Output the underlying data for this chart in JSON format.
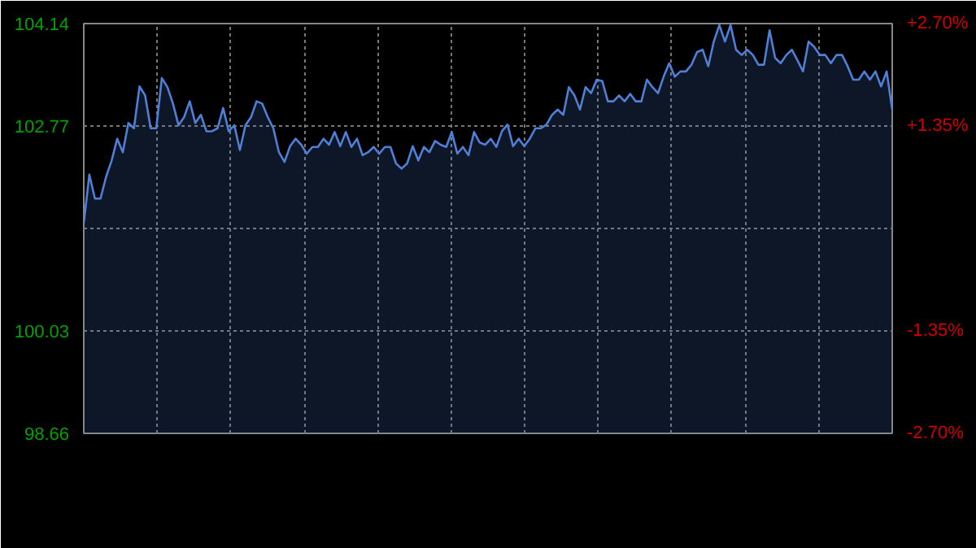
{
  "chart_data": {
    "type": "area",
    "tick_labels": "y",
    "grid": true,
    "categories": [
      null,
      null,
      null,
      null,
      null,
      null,
      null,
      null,
      null,
      null,
      null,
      null,
      null,
      null,
      null,
      null,
      null,
      null,
      null,
      null,
      null,
      null,
      null,
      null,
      null,
      null,
      null,
      null,
      null,
      null,
      null,
      null,
      null,
      null,
      null,
      null,
      null,
      null,
      null,
      null,
      null,
      null,
      null,
      null,
      null,
      null,
      null,
      null,
      null,
      null,
      null,
      null,
      null,
      null,
      null,
      null,
      null,
      null,
      null,
      null,
      null,
      null,
      null,
      null,
      null,
      null,
      null,
      null,
      null,
      null,
      null,
      null,
      null,
      null,
      null,
      null,
      null,
      null,
      null,
      null,
      null,
      null,
      null,
      null,
      null,
      null,
      null,
      null,
      null,
      null,
      null,
      null,
      null,
      null,
      null,
      null,
      null,
      null,
      null,
      null,
      null,
      null,
      null,
      null,
      null,
      null,
      null,
      null,
      null,
      null,
      null,
      null,
      null,
      null,
      null,
      null,
      null,
      null,
      null,
      null,
      null,
      null,
      null,
      null,
      null,
      null,
      null,
      null,
      null,
      null,
      null,
      null,
      null,
      null,
      null,
      null,
      null,
      null,
      null,
      null,
      null,
      null,
      null,
      null,
      null,
      null
    ],
    "ylim": [
      98.66,
      104.14
    ],
    "yticks": [
      98.66,
      100.03,
      {
        "value": 101.4,
        "label": null
      },
      102.77,
      104.14
    ],
    "y2lim": [
      -2.7,
      2.7
    ],
    "y2ticks": [
      {
        "value": -2.7,
        "label": "-2.70%"
      },
      {
        "value": -1.35,
        "label": "-1.35%"
      },
      {
        "value": 0,
        "label": null
      },
      {
        "value": 1.35,
        "label": "+1.35%"
      },
      {
        "value": 2.7,
        "label": "+2.70%"
      }
    ],
    "series": [
      {
        "color": "#4f7fd6",
        "values": [
          101.47,
          102.12,
          101.8,
          101.8,
          102.09,
          102.31,
          102.6,
          102.42,
          102.81,
          102.74,
          103.3,
          103.18,
          102.74,
          102.74,
          103.41,
          103.29,
          103.07,
          102.78,
          102.89,
          103.1,
          102.81,
          102.92,
          102.7,
          102.7,
          102.74,
          103.01,
          102.7,
          102.78,
          102.45,
          102.78,
          102.89,
          103.1,
          103.07,
          102.89,
          102.74,
          102.42,
          102.29,
          102.5,
          102.6,
          102.52,
          102.4,
          102.49,
          102.49,
          102.6,
          102.52,
          102.69,
          102.5,
          102.69,
          102.49,
          102.6,
          102.38,
          102.42,
          102.49,
          102.4,
          102.49,
          102.49,
          102.27,
          102.2,
          102.27,
          102.5,
          102.31,
          102.49,
          102.42,
          102.57,
          102.52,
          102.49,
          102.69,
          102.4,
          102.49,
          102.38,
          102.69,
          102.55,
          102.52,
          102.6,
          102.49,
          102.7,
          102.79,
          102.5,
          102.6,
          102.5,
          102.6,
          102.74,
          102.74,
          102.79,
          102.92,
          102.99,
          102.92,
          103.29,
          103.18,
          102.99,
          103.29,
          103.21,
          103.39,
          103.37,
          103.1,
          103.1,
          103.18,
          103.1,
          103.2,
          103.1,
          103.1,
          103.39,
          103.29,
          103.21,
          103.43,
          103.61,
          103.43,
          103.5,
          103.5,
          103.59,
          103.76,
          103.79,
          103.57,
          103.9,
          104.12,
          103.9,
          104.12,
          103.79,
          103.72,
          103.79,
          103.72,
          103.59,
          103.59,
          104.05,
          103.68,
          103.61,
          103.72,
          103.79,
          103.65,
          103.5,
          103.9,
          103.83,
          103.72,
          103.72,
          103.61,
          103.72,
          103.72,
          103.57,
          103.39,
          103.39,
          103.5,
          103.39,
          103.5,
          103.3,
          103.5,
          102.99
        ]
      }
    ]
  }
}
